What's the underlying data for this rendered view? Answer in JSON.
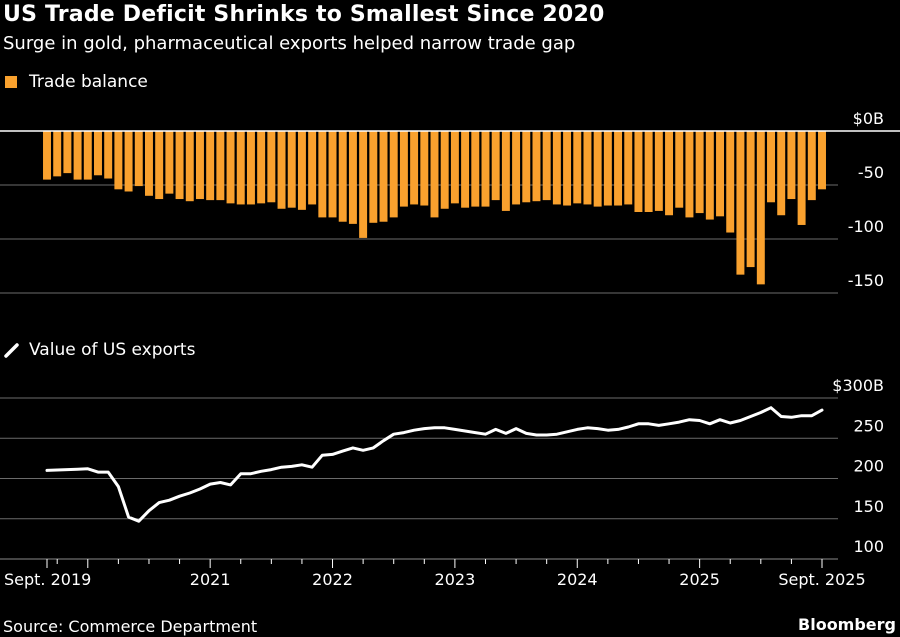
{
  "header": {
    "title": "US Trade Deficit Shrinks to Smallest Since 2020",
    "subtitle": "Surge in gold, pharmaceutical exports helped narrow trade gap"
  },
  "footer": {
    "source": "Source: Commerce Department",
    "brand": "Bloomberg"
  },
  "colors": {
    "bar": "#f9a12e",
    "line": "#ffffff",
    "background": "#000000",
    "grid": "#6b6b6b",
    "zero_line": "#ffffff"
  },
  "chart_data": [
    {
      "type": "bar",
      "title": "Trade balance",
      "legend": "Trade balance",
      "unit": "$B",
      "x_start": "Sept. 2019",
      "x_end": "Sept. 2025",
      "frequency": "monthly",
      "yticks": [
        "$0B",
        "-50",
        "-100",
        "-150"
      ],
      "ytick_values": [
        0,
        -50,
        -100,
        -150
      ],
      "ylim": [
        -150,
        0
      ],
      "grid": true,
      "values": [
        -45,
        -42,
        -39,
        -45,
        -45,
        -41,
        -44,
        -54,
        -56,
        -51,
        -60,
        -63,
        -58,
        -63,
        -65,
        -63,
        -64,
        -64,
        -67,
        -68,
        -68,
        -67,
        -66,
        -72,
        -71,
        -73,
        -68,
        -80,
        -80,
        -84,
        -86,
        -99,
        -85,
        -84,
        -80,
        -70,
        -68,
        -69,
        -80,
        -72,
        -67,
        -71,
        -70,
        -70,
        -64,
        -74,
        -68,
        -66,
        -65,
        -64,
        -68,
        -69,
        -67,
        -68,
        -70,
        -69,
        -69,
        -68,
        -75,
        -75,
        -74,
        -78,
        -71,
        -80,
        -76,
        -82,
        -79,
        -94,
        -133,
        -126,
        -142,
        -66,
        -78,
        -63,
        -87,
        -64,
        -54
      ]
    },
    {
      "type": "line",
      "title": "Value of US exports",
      "legend": "Value of US exports",
      "unit": "$B",
      "yticks": [
        "$300B",
        "250",
        "200",
        "150",
        "100"
      ],
      "ytick_values": [
        300,
        250,
        200,
        150,
        100
      ],
      "ylim": [
        100,
        300
      ],
      "grid": true,
      "xticks": [
        "Sept. 2019",
        "2021",
        "2022",
        "2023",
        "2024",
        "2025",
        "Sept. 2025"
      ],
      "values": [
        210,
        210.5,
        211,
        211.5,
        212,
        208,
        208,
        190,
        152,
        147,
        160,
        170,
        173,
        178,
        182,
        187,
        193,
        195,
        192,
        206,
        206,
        209,
        211,
        214,
        215,
        217,
        214,
        229,
        230,
        234,
        238,
        235,
        238,
        247,
        255,
        257,
        260,
        262,
        263,
        263,
        261,
        259,
        257,
        255,
        261,
        256,
        262,
        256,
        254,
        254,
        255,
        258,
        261,
        263,
        262,
        260,
        261,
        264,
        268,
        268,
        266,
        268,
        270,
        273,
        272,
        268,
        273,
        269,
        272,
        277,
        282,
        288,
        277,
        276,
        278,
        278,
        285
      ]
    }
  ]
}
